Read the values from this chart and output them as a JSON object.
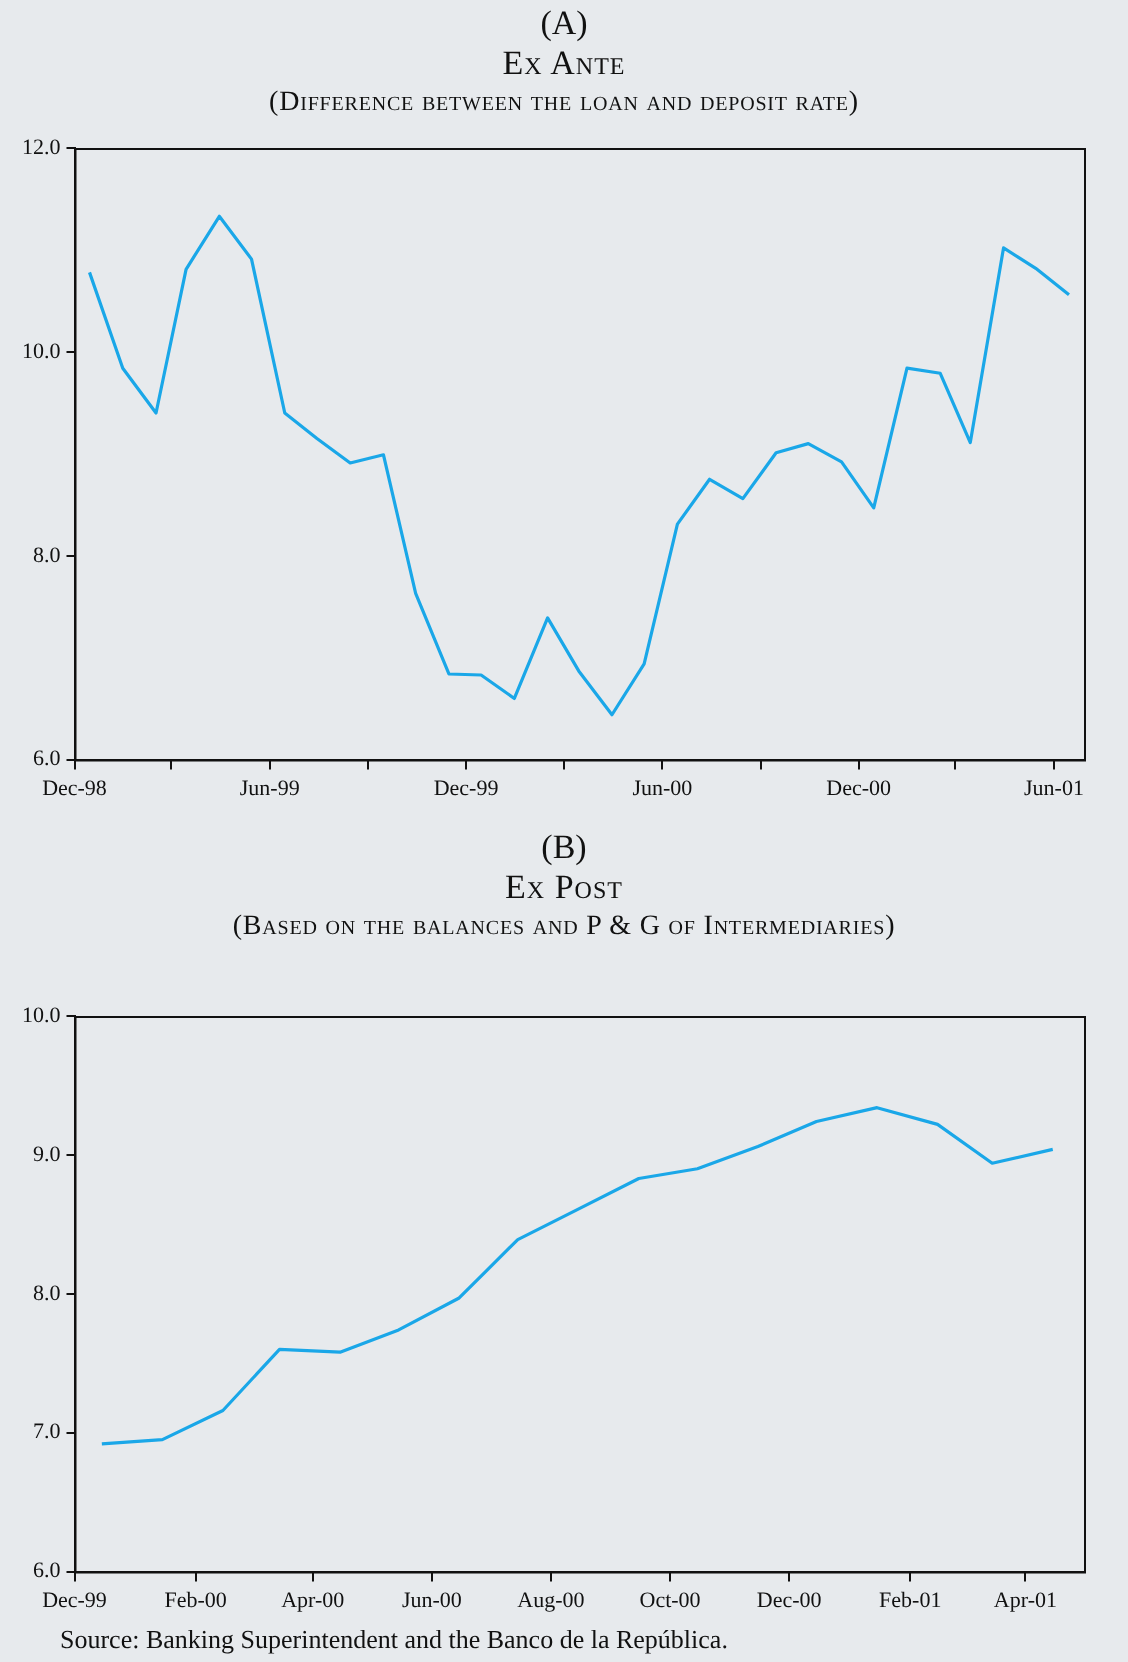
{
  "chart_data": [
    {
      "type": "line",
      "title": "Ex Ante",
      "subtitle": "(Difference between the loan and deposit rate)",
      "annotations": [
        "(A)"
      ],
      "color": "#1aa7e8",
      "x": [
        "1998-12-15",
        "1999-01-15",
        "1999-02-15",
        "1999-03-15",
        "1999-04-15",
        "1999-05-15",
        "1999-06-15",
        "1999-07-15",
        "1999-08-15",
        "1999-09-15",
        "1999-10-15",
        "1999-11-15",
        "1999-12-15",
        "2000-01-15",
        "2000-02-15",
        "2000-03-15",
        "2000-04-15",
        "2000-05-15",
        "2000-06-15",
        "2000-07-15",
        "2000-08-15",
        "2000-09-15",
        "2000-10-15",
        "2000-11-15",
        "2000-12-15",
        "2001-01-15",
        "2001-02-15",
        "2001-03-15",
        "2001-04-15",
        "2001-05-15",
        "2001-06-15"
      ],
      "values": [
        10.78,
        9.84,
        9.4,
        10.81,
        11.33,
        10.91,
        9.4,
        9.15,
        8.91,
        8.99,
        7.63,
        6.84,
        6.83,
        6.6,
        7.39,
        6.87,
        6.44,
        6.94,
        8.31,
        8.75,
        8.56,
        9.01,
        9.1,
        8.92,
        8.47,
        9.84,
        9.79,
        9.11,
        11.02,
        10.82,
        10.56
      ],
      "xlim": [
        "1998-12-01",
        "2001-06-29"
      ],
      "xticks": [
        {
          "value": "1998-12",
          "label": "Dec-98"
        },
        {
          "value": "1999-03",
          "label": null
        },
        {
          "value": "1999-06",
          "label": "Jun-99"
        },
        {
          "value": "1999-09",
          "label": null
        },
        {
          "value": "1999-12",
          "label": "Dec-99"
        },
        {
          "value": "2000-03",
          "label": null
        },
        {
          "value": "2000-06",
          "label": "Jun-00"
        },
        {
          "value": "2000-09",
          "label": null
        },
        {
          "value": "2000-12",
          "label": "Dec-00"
        },
        {
          "value": "2001-03",
          "label": null
        },
        {
          "value": "2001-06",
          "label": "Jun-01"
        }
      ],
      "ylim": [
        6,
        12
      ],
      "yticks": [
        {
          "value": 6,
          "label": "6.0"
        },
        {
          "value": 8,
          "label": "8.0"
        },
        {
          "value": 10,
          "label": "10.0"
        },
        {
          "value": 12,
          "label": "12.0"
        }
      ],
      "grid": false,
      "legend": false,
      "marker": "none",
      "line_style": "solid"
    },
    {
      "type": "line",
      "title": "Ex Post",
      "subtitle": "(Based on the balances and P & G of Intermediaries)",
      "annotations": [
        "(B)",
        "Source: Banking Superintendent and the Banco de la República."
      ],
      "color": "#1aa7e8",
      "x": [
        "1999-12-15",
        "2000-01-15",
        "2000-02-15",
        "2000-03-15",
        "2000-04-15",
        "2000-05-15",
        "2000-06-15",
        "2000-07-15",
        "2000-08-15",
        "2000-09-15",
        "2000-10-15",
        "2000-11-15",
        "2000-12-15",
        "2001-01-15",
        "2001-02-15",
        "2001-03-15",
        "2001-04-15"
      ],
      "values": [
        6.92,
        6.95,
        7.16,
        7.6,
        7.58,
        7.74,
        7.97,
        8.39,
        8.61,
        8.83,
        8.9,
        9.06,
        9.24,
        9.34,
        9.22,
        8.94,
        9.04
      ],
      "xlim": [
        "1999-12-01",
        "2001-05-01"
      ],
      "xticks": [
        {
          "value": "1999-12",
          "label": "Dec-99"
        },
        {
          "value": "2000-02",
          "label": "Feb-00"
        },
        {
          "value": "2000-04",
          "label": "Apr-00"
        },
        {
          "value": "2000-06",
          "label": "Jun-00"
        },
        {
          "value": "2000-08",
          "label": "Aug-00"
        },
        {
          "value": "2000-10",
          "label": "Oct-00"
        },
        {
          "value": "2000-12",
          "label": "Dec-00"
        },
        {
          "value": "2001-02",
          "label": "Feb-01"
        },
        {
          "value": "2001-04",
          "label": "Apr-01"
        }
      ],
      "ylim": [
        6,
        10
      ],
      "yticks": [
        {
          "value": 6,
          "label": "6.0"
        },
        {
          "value": 7,
          "label": "7.0"
        },
        {
          "value": 8,
          "label": "8.0"
        },
        {
          "value": 9,
          "label": "9.0"
        },
        {
          "value": 10,
          "label": "10.0"
        }
      ],
      "grid": false,
      "legend": false,
      "marker": "none",
      "line_style": "solid"
    }
  ]
}
